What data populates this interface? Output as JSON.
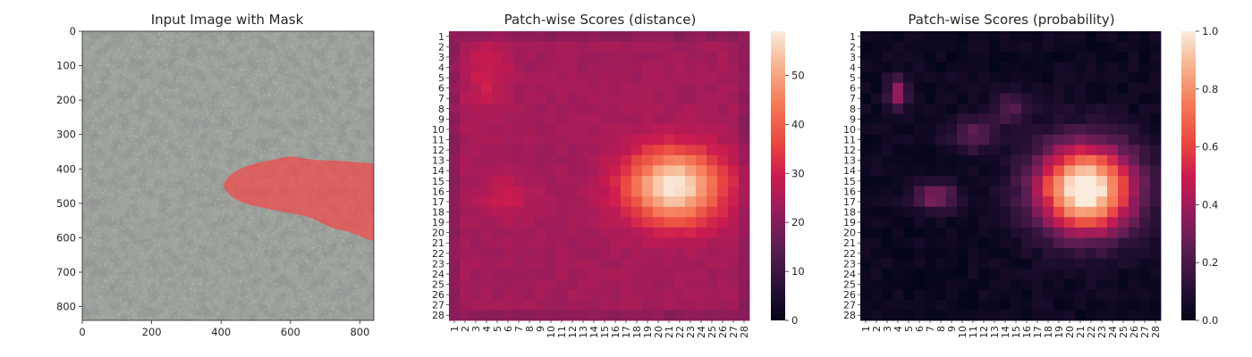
{
  "chart_data": [
    {
      "type": "image",
      "title": "Input Image with Mask",
      "xlim": [
        0,
        840
      ],
      "ylim": [
        840,
        0
      ],
      "xticks": [
        0,
        200,
        400,
        600,
        800
      ],
      "yticks": [
        0,
        100,
        200,
        300,
        400,
        500,
        600,
        700,
        800
      ],
      "mask_color": "#ff3a3a",
      "mask_region": "red blob from x≈410 to 840, y≈360 to 590"
    },
    {
      "type": "heatmap",
      "title": "Patch-wise Scores (distance)",
      "rows": [
        "1",
        "2",
        "3",
        "4",
        "5",
        "6",
        "7",
        "8",
        "9",
        "10",
        "11",
        "12",
        "13",
        "14",
        "15",
        "16",
        "17",
        "18",
        "19",
        "20",
        "21",
        "22",
        "23",
        "24",
        "25",
        "26",
        "27",
        "28"
      ],
      "cols": [
        "1",
        "2",
        "3",
        "4",
        "5",
        "6",
        "7",
        "8",
        "9",
        "10",
        "11",
        "12",
        "13",
        "14",
        "15",
        "16",
        "17",
        "18",
        "19",
        "20",
        "21",
        "22",
        "23",
        "24",
        "25",
        "26",
        "27",
        "28"
      ],
      "colorbar": {
        "min": 0,
        "max": 59,
        "ticks": [
          0,
          10,
          20,
          30,
          40,
          50
        ]
      },
      "value_range": [
        18,
        59
      ],
      "hotspot": {
        "center_col": 21.5,
        "center_row": 15.5,
        "peak": 59
      }
    },
    {
      "type": "heatmap",
      "title": "Patch-wise Scores (probability)",
      "rows": [
        "1",
        "2",
        "3",
        "4",
        "5",
        "6",
        "7",
        "8",
        "9",
        "10",
        "11",
        "12",
        "13",
        "14",
        "15",
        "16",
        "17",
        "18",
        "19",
        "20",
        "21",
        "22",
        "23",
        "24",
        "25",
        "26",
        "27",
        "28"
      ],
      "cols": [
        "1",
        "2",
        "3",
        "4",
        "5",
        "6",
        "7",
        "8",
        "9",
        "10",
        "11",
        "12",
        "13",
        "14",
        "15",
        "16",
        "17",
        "18",
        "19",
        "20",
        "21",
        "22",
        "23",
        "24",
        "25",
        "26",
        "27",
        "28"
      ],
      "colorbar": {
        "min": 0.0,
        "max": 1.0,
        "ticks": [
          "0.0",
          "0.2",
          "0.4",
          "0.6",
          "0.8",
          "1.0"
        ]
      },
      "value_range": [
        0.0,
        1.0
      ],
      "hotspot": {
        "center_col": 21.5,
        "center_row": 15.5,
        "peak": 1.0
      }
    }
  ]
}
